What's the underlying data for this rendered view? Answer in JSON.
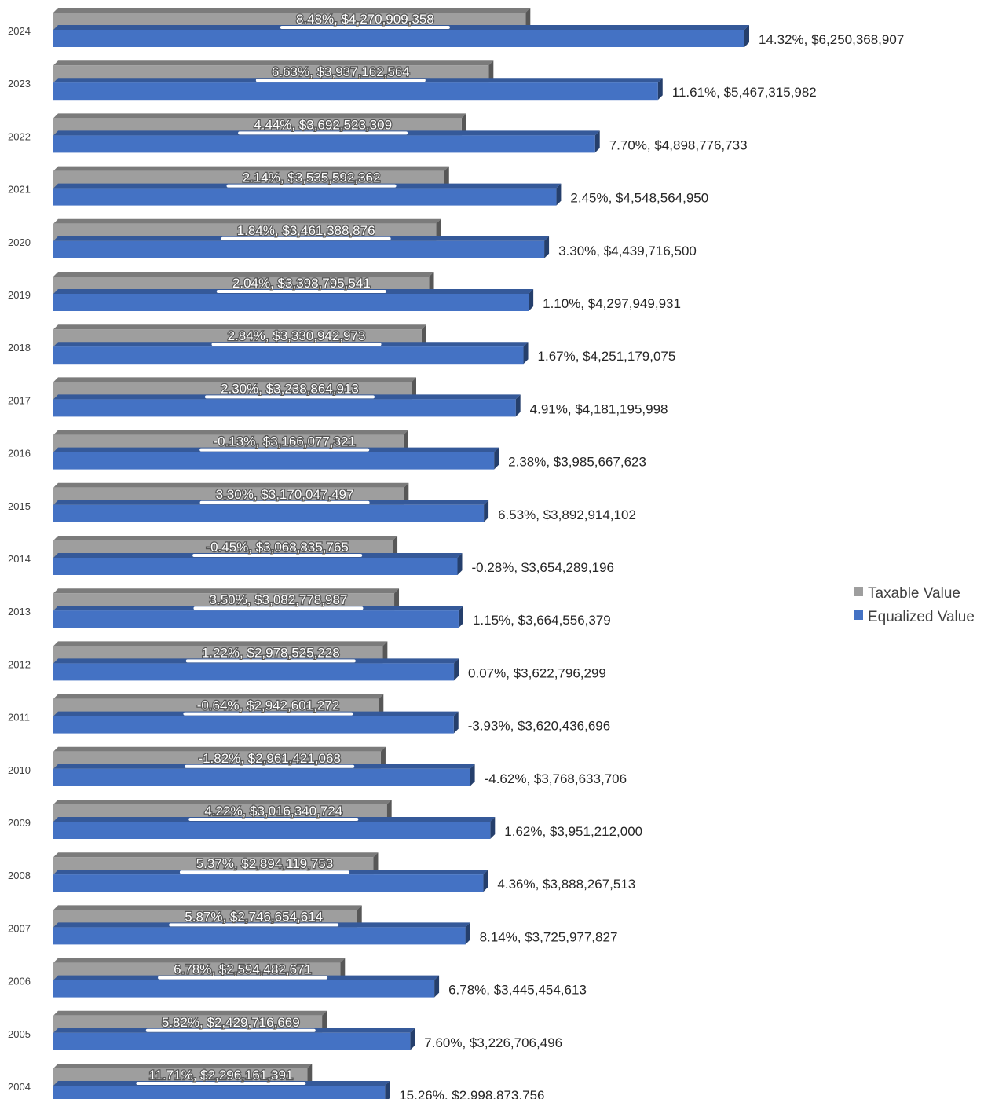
{
  "chart_data": {
    "type": "bar",
    "orientation": "horizontal",
    "style": "3d",
    "categories": [
      "2024",
      "2023",
      "2022",
      "2021",
      "2020",
      "2019",
      "2018",
      "2017",
      "2016",
      "2015",
      "2014",
      "2013",
      "2012",
      "2011",
      "2010",
      "2009",
      "2008",
      "2007",
      "2006",
      "2005",
      "2004"
    ],
    "series": [
      {
        "name": "Taxable Value",
        "color": "#9e9e9e",
        "values": [
          4270909358,
          3937162564,
          3692523309,
          3535592362,
          3461388876,
          3398795541,
          3330942973,
          3238864913,
          3166077321,
          3170047497,
          3068835765,
          3082778987,
          2978525228,
          2942601272,
          2961421068,
          3016340724,
          2894119753,
          2746654614,
          2594482671,
          2429716669,
          2296161391
        ],
        "labels": [
          "8.48%, $4,270,909,358",
          "6.63%, $3,937,162,564",
          "4.44%, $3,692,523,309",
          "2.14%, $3,535,592,362",
          "1.84%, $3,461,388,876",
          "2.04%, $3,398,795,541",
          "2.84%, $3,330,942,973",
          "2.30%, $3,238,864,913",
          "-0.13%, $3,166,077,321",
          "3.30%, $3,170,047,497",
          "-0.45%, $3,068,835,765",
          "3.50%, $3,082,778,987",
          "1.22%, $2,978,525,228",
          "-0.64%, $2,942,601,272",
          "-1.82%, $2,961,421,068",
          "4.22%, $3,016,340,724",
          "5.37%, $2,894,119,753",
          "5.87%, $2,746,654,614",
          "6.78%, $2,594,482,671",
          "5.82%, $2,429,716,669",
          "11.71%, $2,296,161,391"
        ]
      },
      {
        "name": "Equalized Value",
        "color": "#4472c4",
        "values": [
          6250368907,
          5467315982,
          4898776733,
          4548564950,
          4439716500,
          4297949931,
          4251179075,
          4181195998,
          3985667623,
          3892914102,
          3654289196,
          3664556379,
          3622796299,
          3620436696,
          3768633706,
          3951212000,
          3888267513,
          3725977827,
          3445454613,
          3226706496,
          2998873756
        ],
        "labels": [
          "14.32%, $6,250,368,907",
          "11.61%, $5,467,315,982",
          "7.70%, $4,898,776,733",
          "2.45%, $4,548,564,950",
          "3.30%, $4,439,716,500",
          "1.10%, $4,297,949,931",
          "1.67%, $4,251,179,075",
          "4.91%, $4,181,195,998",
          "2.38%, $3,985,667,623",
          "6.53%, $3,892,914,102",
          "-0.28%, $3,654,289,196",
          "1.15%, $3,664,556,379",
          "0.07%, $3,622,796,299",
          "-3.93%, $3,620,436,696",
          "-4.62%, $3,768,633,706",
          "1.62%, $3,951,212,000",
          "4.36%, $3,888,267,513",
          "8.14%, $3,725,977,827",
          "6.78%, $3,445,454,613",
          "7.60%, $3,226,706,496",
          "15.26%, $2,998,873,756"
        ]
      }
    ],
    "xlim": [
      0,
      6250368907
    ],
    "legend": "right",
    "grid": false
  }
}
